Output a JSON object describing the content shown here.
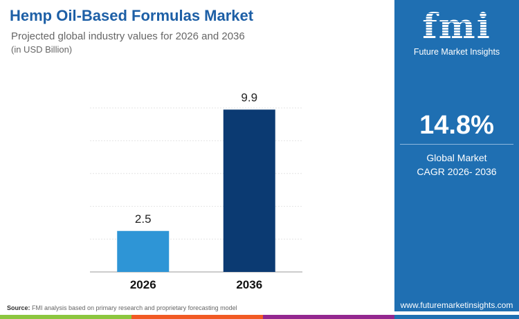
{
  "header": {
    "title": "Hemp Oil-Based Formulas Market",
    "subtitle": "Projected global industry values for 2026 and 2036",
    "unit": "(in USD Billion)"
  },
  "chart_data": {
    "type": "bar",
    "categories": [
      "2026",
      "2036"
    ],
    "values": [
      2.5,
      9.9
    ],
    "data_labels": [
      "2.5",
      "9.9"
    ],
    "ylim": [
      0,
      10
    ],
    "grid_step": 2,
    "colors": [
      "#2e95d6",
      "#0b3a72"
    ],
    "title": "Hemp Oil-Based Formulas Market",
    "xlabel": "",
    "ylabel": "USD Billion"
  },
  "panel": {
    "logo_text": "fmi",
    "brand": "Future Market Insights",
    "cagr": "14.8%",
    "cagr_label_1": "Global Market",
    "cagr_label_2": "CAGR 2026- 2036",
    "website": "www.futuremarketinsights.com",
    "color": "#1f6fb2"
  },
  "footer": {
    "source_label": "Source:",
    "source_text": " FMI analysis based on primary research and proprietary forecasting model",
    "stripes": [
      "#8cc63f",
      "#f15a24",
      "#93278f",
      "#1f6fb2"
    ]
  }
}
